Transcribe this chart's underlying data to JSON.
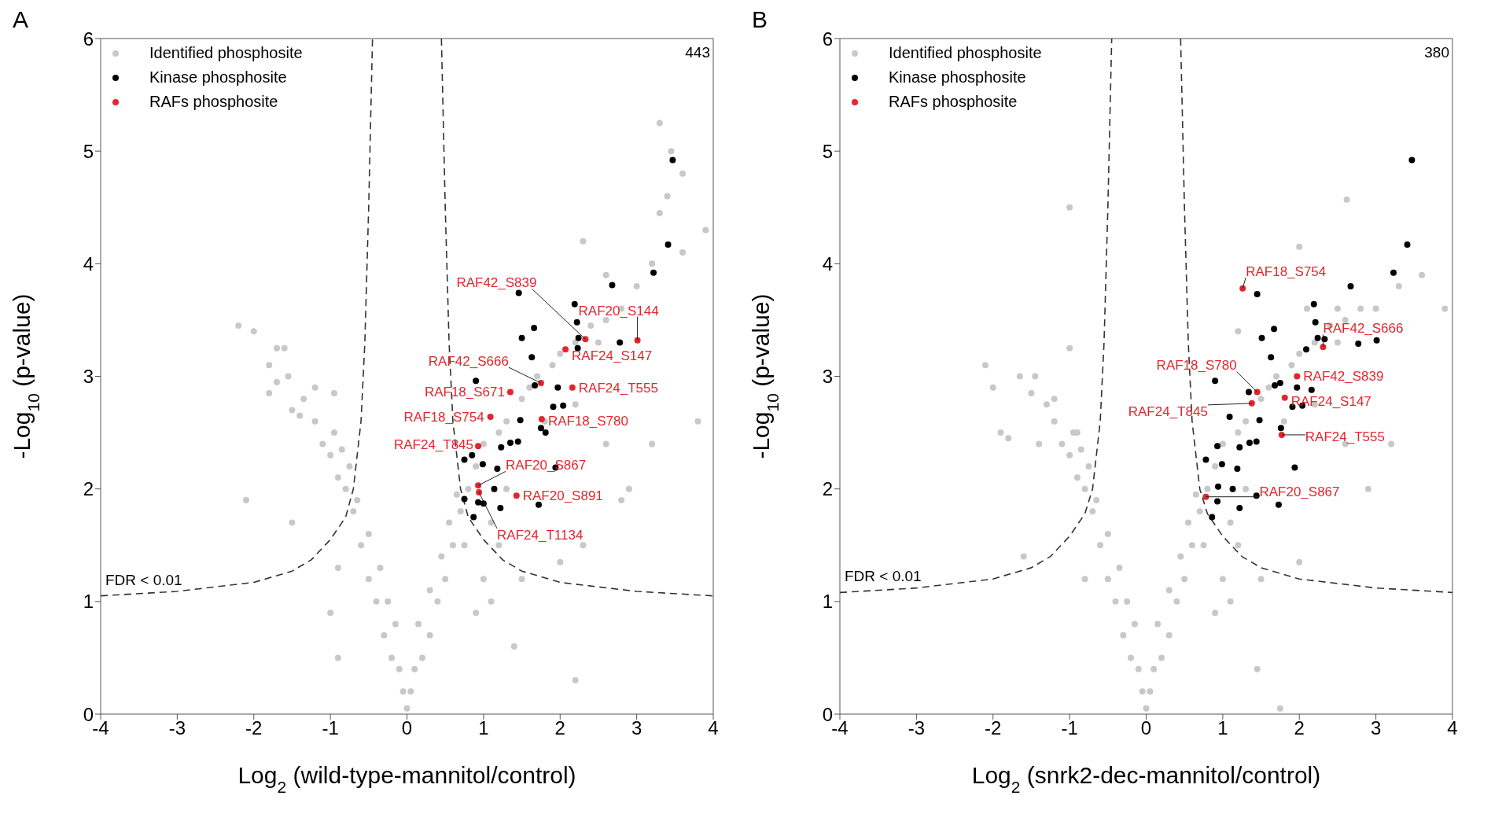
{
  "chart_data": [
    {
      "type": "scatter",
      "title": "A",
      "xlabel": "Log$_{2}$ (wild-type-mannitol/control)",
      "ylabel": "-Log$_{10}$ (p-value)",
      "xlim": [
        -4,
        4
      ],
      "ylim": [
        0,
        6
      ],
      "xticks": [
        -4,
        -3,
        -2,
        -1,
        0,
        1,
        2,
        3,
        4
      ],
      "yticks": [
        0,
        1,
        2,
        3,
        4,
        5,
        6
      ],
      "legend": "top left",
      "marker": "circle",
      "series": [
        {
          "type": "scatter",
          "name": "Identified phosphosite",
          "color": "#c8c8c8",
          "x": [
            0,
            -0.05,
            0.05,
            -0.1,
            0.1,
            -0.2,
            0.2,
            -0.3,
            0.3,
            -0.15,
            0.15,
            -0.4,
            0.4,
            -0.25,
            0.3,
            -0.5,
            0.5,
            -0.35,
            0.45,
            -0.6,
            0.6,
            -0.5,
            0.55,
            -0.7,
            0.7,
            -0.65,
            0.65,
            -0.8,
            0.8,
            -0.9,
            -0.75,
            -1.0,
            -0.85,
            -1.1,
            -0.95,
            -1.2,
            -2.2,
            -2.0,
            -1.7,
            -1.6,
            -1.8,
            -1.55,
            -1.7,
            -1.8,
            -1.2,
            -0.95,
            -1.35,
            -1.5,
            -1.4,
            -2.1,
            -1.5,
            -0.9,
            -1.0,
            -0.9,
            1.1,
            1.4,
            2.2,
            0.9,
            1.5,
            2.3,
            2.0,
            0.9,
            1.0,
            1.2,
            1.3,
            1.5,
            1.6,
            1.7,
            1.9,
            2.0,
            2.2,
            2.4,
            2.6,
            2.8,
            2.5,
            3.0,
            3.2,
            3.3,
            3.4,
            3.6,
            3.9,
            3.6,
            3.3,
            3.45,
            2.3,
            2.6,
            1.8,
            2.2,
            2.6,
            3.2,
            3.8,
            2.8,
            1.3,
            1.1,
            1.2,
            0.75,
            1.0,
            2.9
          ],
          "values": [
            0.05,
            0.2,
            0.2,
            0.4,
            0.4,
            0.5,
            0.5,
            0.7,
            0.7,
            0.8,
            0.8,
            1.0,
            1.0,
            1.0,
            1.1,
            1.2,
            1.2,
            1.3,
            1.4,
            1.5,
            1.5,
            1.6,
            1.7,
            1.8,
            1.8,
            1.9,
            1.95,
            2.0,
            2.0,
            2.1,
            2.2,
            2.3,
            2.35,
            2.4,
            2.5,
            2.6,
            3.45,
            3.4,
            3.25,
            3.25,
            3.1,
            3.0,
            2.95,
            2.85,
            2.9,
            2.85,
            2.8,
            2.7,
            2.65,
            1.9,
            1.7,
            1.3,
            0.9,
            0.5,
            1.0,
            0.6,
            0.3,
            0.9,
            1.2,
            1.5,
            1.35,
            2.2,
            2.4,
            2.5,
            2.6,
            2.8,
            2.9,
            3.0,
            3.1,
            3.2,
            3.3,
            3.45,
            3.5,
            3.6,
            3.3,
            3.8,
            4.0,
            4.45,
            4.6,
            4.1,
            4.3,
            4.8,
            5.25,
            5.0,
            4.2,
            3.9,
            2.6,
            2.75,
            2.4,
            2.4,
            2.6,
            1.9,
            2.0,
            1.7,
            1.5,
            1.5,
            1.2,
            2.0
          ]
        },
        {
          "type": "line",
          "marker": "none",
          "color": "#333333",
          "line_style": "dashed",
          "x": [
            -4,
            -3,
            -2,
            -1.5,
            -1.25,
            -1.0,
            -0.8,
            -0.7,
            -0.6,
            -0.55,
            -0.5,
            -0.45
          ],
          "values": [
            1.05,
            1.09,
            1.17,
            1.27,
            1.37,
            1.55,
            1.75,
            2.0,
            2.6,
            3.3,
            4.5,
            6
          ]
        },
        {
          "type": "line",
          "marker": "none",
          "color": "#333333",
          "line_style": "dashed",
          "x": [
            0.45,
            0.5,
            0.55,
            0.6,
            0.7,
            0.8,
            1.0,
            1.25,
            1.5,
            2,
            3,
            4
          ],
          "values": [
            6,
            4.5,
            3.3,
            2.6,
            2.0,
            1.75,
            1.55,
            1.37,
            1.27,
            1.17,
            1.09,
            1.05
          ]
        },
        {
          "type": "scatter",
          "name": "Kinase phosphosite",
          "color": "#000000",
          "x": [
            3.47,
            3.41,
            3.22,
            2.68,
            1.46,
            2.19,
            2.22,
            2.24,
            2.23,
            2.78,
            1.66,
            1.5,
            1.63,
            0.9,
            1.67,
            1.97,
            1.91,
            2.04,
            1.48,
            1.75,
            1.81,
            1.23,
            1.35,
            1.45,
            0.85,
            0.75,
            0.99,
            1.18,
            1.94,
            1.14,
            0.75,
            0.93,
            1.0,
            1.22,
            1.72,
            0.87
          ],
          "values": [
            4.92,
            4.17,
            3.92,
            3.81,
            3.74,
            3.64,
            3.48,
            3.34,
            3.25,
            3.3,
            3.43,
            3.34,
            3.17,
            2.96,
            2.92,
            2.9,
            2.73,
            2.74,
            2.61,
            2.54,
            2.5,
            2.37,
            2.41,
            2.42,
            2.3,
            2.26,
            2.22,
            2.18,
            2.19,
            2.0,
            1.91,
            1.88,
            1.87,
            1.83,
            1.86,
            1.75
          ]
        },
        {
          "type": "scatter",
          "name": "RAFs phosphosite",
          "color": "#e3262d",
          "x": [
            2.33,
            3.01,
            2.07,
            1.75,
            1.35,
            2.16,
            1.09,
            1.76,
            0.93,
            0.93,
            1.43,
            0.94
          ],
          "values": [
            3.33,
            3.32,
            3.24,
            2.94,
            2.86,
            2.9,
            2.64,
            2.62,
            2.38,
            2.03,
            1.94,
            1.97
          ]
        }
      ],
      "annotations": [
        "443",
        "FDR < 0.01",
        {
          "text": "RAF42_S839",
          "x": 2.33,
          "y": 3.33
        },
        {
          "text": "RAF20_S144",
          "x": 3.01,
          "y": 3.32
        },
        {
          "text": "RAF24_S147",
          "x": 2.07,
          "y": 3.24
        },
        {
          "text": "RAF42_S666",
          "x": 1.75,
          "y": 2.94
        },
        {
          "text": "RAF18_S671",
          "x": 1.35,
          "y": 2.86
        },
        {
          "text": "RAF24_T555",
          "x": 2.16,
          "y": 2.9
        },
        {
          "text": "RAF18_S754",
          "x": 1.09,
          "y": 2.64
        },
        {
          "text": "RAF18_S780",
          "x": 1.76,
          "y": 2.62
        },
        {
          "text": "RAF24_T845",
          "x": 0.93,
          "y": 2.38
        },
        {
          "text": "RAF20_S867",
          "x": 0.93,
          "y": 2.03
        },
        {
          "text": "RAF20_S891",
          "x": 1.43,
          "y": 1.94
        },
        {
          "text": "RAF24_T1134",
          "x": 0.94,
          "y": 1.97
        }
      ]
    },
    {
      "type": "scatter",
      "title": "B",
      "xlabel": "Log$_{2}$ (snrk2-dec-mannitol/control)",
      "ylabel": "-Log$_{10}$ (p-value)",
      "xlim": [
        -4,
        4
      ],
      "ylim": [
        0,
        6
      ],
      "xticks": [
        -4,
        -3,
        -2,
        -1,
        0,
        1,
        2,
        3,
        4
      ],
      "yticks": [
        0,
        1,
        2,
        3,
        4,
        5,
        6
      ],
      "legend": "top left",
      "marker": "circle",
      "series": [
        {
          "type": "scatter",
          "name": "Identified phosphosite",
          "color": "#c8c8c8",
          "x": [
            0,
            -0.05,
            0.05,
            -0.1,
            0.1,
            -0.2,
            0.2,
            -0.3,
            0.3,
            -0.15,
            0.15,
            -0.4,
            0.4,
            -0.25,
            0.3,
            -0.5,
            0.5,
            -0.35,
            0.45,
            -0.6,
            0.6,
            -0.5,
            0.55,
            -0.7,
            0.7,
            -0.65,
            0.65,
            -0.8,
            0.8,
            -0.9,
            -0.75,
            -1.0,
            -0.85,
            -1.1,
            -0.95,
            -1.2,
            -1.0,
            -2.1,
            -2.0,
            -1.65,
            -1.45,
            -1.5,
            -1.3,
            -1.9,
            -1.8,
            -1.2,
            -1.0,
            -0.9,
            -1.4,
            -1.6,
            -0.8,
            1.45,
            1.75,
            1.1,
            0.9,
            1.5,
            2.0,
            0.9,
            1.0,
            1.2,
            1.3,
            1.5,
            1.6,
            1.7,
            1.9,
            2.0,
            2.2,
            2.4,
            2.6,
            2.8,
            2.5,
            3.0,
            3.3,
            3.6,
            3.9,
            2.62,
            2.0,
            2.1,
            2.5,
            1.2,
            1.8,
            2.2,
            2.6,
            3.2,
            1.3,
            1.1,
            1.2,
            0.75,
            1.0,
            2.9
          ],
          "values": [
            0.05,
            0.2,
            0.2,
            0.4,
            0.4,
            0.5,
            0.5,
            0.7,
            0.7,
            0.8,
            0.8,
            1.0,
            1.0,
            1.0,
            1.1,
            1.2,
            1.2,
            1.3,
            1.4,
            1.5,
            1.5,
            1.6,
            1.7,
            1.8,
            1.8,
            1.9,
            1.95,
            2.0,
            2.0,
            2.1,
            2.2,
            2.3,
            2.35,
            2.4,
            2.5,
            2.6,
            4.5,
            3.1,
            2.9,
            3.0,
            3.0,
            2.85,
            2.75,
            2.5,
            2.45,
            2.8,
            3.25,
            2.5,
            2.4,
            1.4,
            1.2,
            0.4,
            0.05,
            1.0,
            0.9,
            1.2,
            1.35,
            2.2,
            2.4,
            2.5,
            2.6,
            2.8,
            2.9,
            3.0,
            3.1,
            3.2,
            3.3,
            3.45,
            3.5,
            3.6,
            3.3,
            3.6,
            3.8,
            3.9,
            3.6,
            4.57,
            4.15,
            3.6,
            3.6,
            3.4,
            2.6,
            2.75,
            2.4,
            2.4,
            2.0,
            1.7,
            1.5,
            1.5,
            1.2,
            2.0
          ]
        },
        {
          "type": "line",
          "marker": "none",
          "color": "#333333",
          "line_style": "dashed",
          "x": [
            -4,
            -3,
            -2,
            -1.5,
            -1.25,
            -1.0,
            -0.8,
            -0.7,
            -0.6,
            -0.55,
            -0.5,
            -0.45
          ],
          "values": [
            1.08,
            1.12,
            1.2,
            1.3,
            1.4,
            1.58,
            1.78,
            2.0,
            2.6,
            3.3,
            4.5,
            6
          ]
        },
        {
          "type": "line",
          "marker": "none",
          "color": "#333333",
          "line_style": "dashed",
          "x": [
            0.45,
            0.5,
            0.55,
            0.6,
            0.7,
            0.8,
            1.0,
            1.25,
            1.5,
            2,
            3,
            4
          ],
          "values": [
            6,
            4.5,
            3.3,
            2.6,
            2.0,
            1.78,
            1.58,
            1.4,
            1.3,
            1.2,
            1.12,
            1.08
          ]
        },
        {
          "type": "scatter",
          "name": "Kinase phosphosite",
          "color": "#000000",
          "x": [
            3.47,
            3.41,
            3.23,
            2.67,
            1.45,
            2.19,
            2.21,
            1.67,
            1.51,
            2.24,
            2.33,
            2.77,
            3.01,
            2.09,
            1.63,
            0.9,
            1.68,
            1.75,
            1.97,
            2.16,
            1.91,
            2.04,
            1.34,
            1.09,
            1.48,
            1.76,
            1.22,
            1.35,
            1.44,
            0.78,
            0.93,
            0.99,
            1.19,
            1.94,
            0.94,
            1.13,
            1.44,
            1.73,
            1.22,
            0.86,
            0.93
          ],
          "values": [
            4.92,
            4.17,
            3.92,
            3.8,
            3.73,
            3.64,
            3.48,
            3.42,
            3.34,
            3.34,
            3.33,
            3.29,
            3.32,
            3.24,
            3.17,
            2.96,
            2.92,
            2.94,
            2.9,
            2.88,
            2.73,
            2.74,
            2.86,
            2.64,
            2.61,
            2.54,
            2.37,
            2.41,
            2.42,
            2.26,
            2.38,
            2.22,
            2.18,
            2.19,
            2.02,
            2.0,
            1.94,
            1.86,
            1.83,
            1.75,
            1.89
          ]
        },
        {
          "type": "scatter",
          "name": "RAFs phosphosite",
          "color": "#e3262d",
          "x": [
            1.26,
            2.31,
            1.97,
            1.81,
            1.77,
            1.45,
            1.38,
            0.78
          ],
          "values": [
            3.78,
            3.26,
            3.0,
            2.81,
            2.48,
            2.86,
            2.76,
            1.93
          ]
        }
      ],
      "annotations": [
        "380",
        "FDR < 0.01",
        {
          "text": "RAF18_S754",
          "x": 1.26,
          "y": 3.78
        },
        {
          "text": "RAF42_S666",
          "x": 2.31,
          "y": 3.26
        },
        {
          "text": "RAF42_S839",
          "x": 1.97,
          "y": 3.0
        },
        {
          "text": "RAF24_S147",
          "x": 1.81,
          "y": 2.81
        },
        {
          "text": "RAF24_T555",
          "x": 1.77,
          "y": 2.48
        },
        {
          "text": "RAF18_S780",
          "x": 1.45,
          "y": 2.86
        },
        {
          "text": "RAF24_T845",
          "x": 1.38,
          "y": 2.76
        },
        {
          "text": "RAF20_S867",
          "x": 0.78,
          "y": 1.93
        }
      ]
    }
  ]
}
